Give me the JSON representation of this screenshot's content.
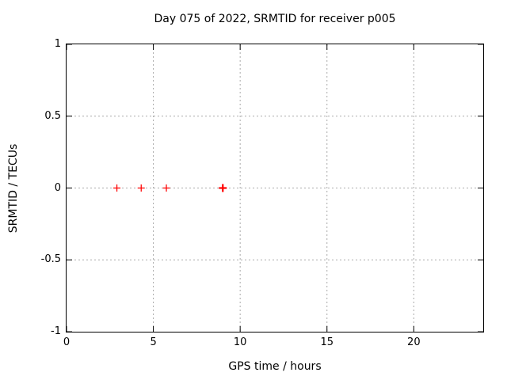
{
  "page": {
    "background": "#ffffff"
  },
  "chart_data": {
    "type": "scatter",
    "title": "Day 075 of 2022, SRMTID for receiver p005",
    "xlabel": "GPS time / hours",
    "ylabel": "SRMTID / TECUs",
    "xlim": [
      0,
      24
    ],
    "ylim": [
      -1,
      1
    ],
    "xticks": [
      0,
      5,
      10,
      15,
      20
    ],
    "xtick_labels": [
      "0",
      "5",
      "10",
      "15",
      "20"
    ],
    "yticks": [
      1,
      0.5,
      0,
      -0.5,
      -1
    ],
    "ytick_labels": [
      "1",
      "0.5",
      "0",
      "-0.5",
      "-1"
    ],
    "grid": true,
    "grid_style": "dashed",
    "legend": "none",
    "series": [
      {
        "name": "SRMTID",
        "marker": "plus",
        "color": "#ff0000",
        "points": [
          {
            "x": 2.9,
            "y": 0
          },
          {
            "x": 4.3,
            "y": 0
          },
          {
            "x": 5.75,
            "y": 0
          },
          {
            "x": 9.0,
            "y": 0,
            "bold": true
          }
        ]
      }
    ],
    "colors": {
      "axis": "#000000",
      "grid": "#aaaaaa",
      "text": "#000000",
      "marker": "#ff0000"
    }
  }
}
